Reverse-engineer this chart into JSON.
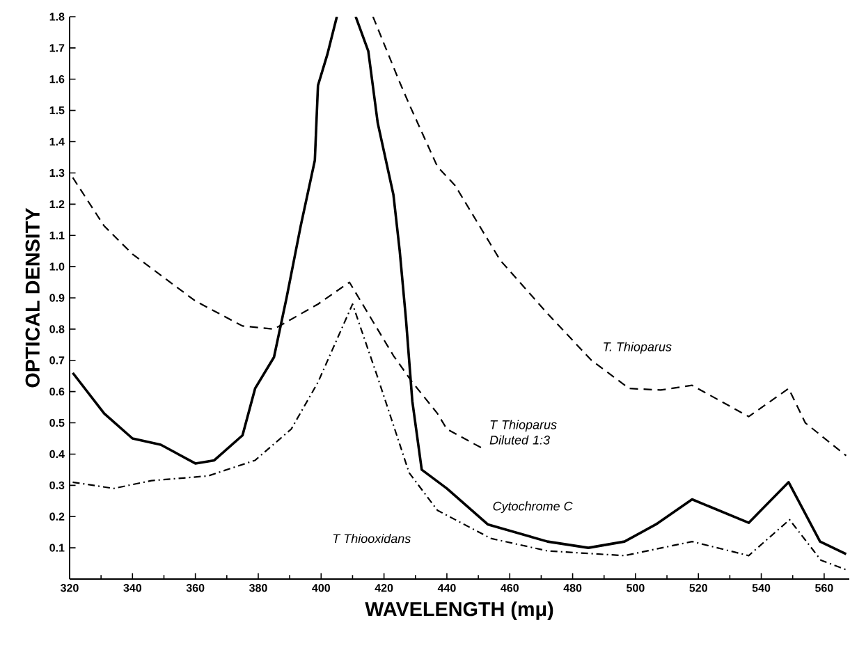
{
  "chart_data": {
    "type": "line",
    "xlabel": "WAVELENGTH (mμ)",
    "ylabel": "OPTICAL DENSITY",
    "xlim": [
      320,
      568
    ],
    "ylim": [
      0,
      1.8
    ],
    "xticks": [
      320,
      340,
      360,
      380,
      400,
      420,
      440,
      460,
      480,
      500,
      520,
      540,
      560
    ],
    "yticks": [
      {
        "value": 0.1,
        "label": "0.1"
      },
      {
        "value": 0.2,
        "label": "0.2"
      },
      {
        "value": 0.3,
        "label": "0.3"
      },
      {
        "value": 0.4,
        "label": "0.4"
      },
      {
        "value": 0.5,
        "label": "0.5"
      },
      {
        "value": 0.6,
        "label": "0.6"
      },
      {
        "value": 0.7,
        "label": "0.7"
      },
      {
        "value": 0.8,
        "label": "0.8"
      },
      {
        "value": 0.9,
        "label": "0.9"
      },
      {
        "value": 1.0,
        "label": "1.0"
      },
      {
        "value": 1.1,
        "label": "1.1"
      },
      {
        "value": 1.2,
        "label": "1.2"
      },
      {
        "value": 1.3,
        "label": "1.3"
      },
      {
        "value": 1.4,
        "label": "1.4"
      },
      {
        "value": 1.5,
        "label": "1.5"
      },
      {
        "value": 1.6,
        "label": "1.6"
      },
      {
        "value": 1.7,
        "label": "1.7"
      },
      {
        "value": 1.8,
        "label": "1.8"
      }
    ],
    "grid": false,
    "legend": false,
    "marker": "none",
    "series": [
      {
        "name": "T. Thioparus",
        "color": "#000000",
        "line_style": "dashed",
        "x": [
          416.5,
          425,
          428,
          437,
          442.6,
          457,
          472,
          486,
          498,
          508,
          518,
          536,
          548.7,
          554,
          567
        ],
        "values": [
          1.8,
          1.59,
          1.52,
          1.32,
          1.26,
          1.02,
          0.85,
          0.7,
          0.61,
          0.605,
          0.62,
          0.52,
          0.61,
          0.5,
          0.395
        ]
      },
      {
        "name": "T Thioparus Diluted 1:3",
        "color": "#000000",
        "line_style": "dashed",
        "x": [
          321,
          331,
          340,
          360,
          375,
          385,
          399,
          409,
          423,
          429,
          437,
          440,
          451
        ],
        "values": [
          1.285,
          1.13,
          1.04,
          0.89,
          0.81,
          0.8,
          0.88,
          0.95,
          0.715,
          0.63,
          0.53,
          0.48,
          0.42
        ]
      },
      {
        "name": "Cytochrome C",
        "color": "#000000",
        "line_style": "solid",
        "x": [
          321,
          331,
          340,
          349,
          360,
          366,
          375,
          379,
          385,
          389,
          393.5,
          398,
          399,
          402,
          405,
          408,
          411,
          415,
          418,
          423,
          425,
          427,
          429,
          432,
          440,
          453,
          472,
          485,
          496.5,
          506.5,
          518,
          536,
          548.7,
          558.7,
          567
        ],
        "values": [
          0.66,
          0.53,
          0.45,
          0.43,
          0.37,
          0.38,
          0.46,
          0.61,
          0.71,
          0.9,
          1.13,
          1.34,
          1.58,
          1.68,
          1.8,
          null,
          1.8,
          1.69,
          1.46,
          1.23,
          1.05,
          0.83,
          0.57,
          0.35,
          0.29,
          0.175,
          0.12,
          0.1,
          0.12,
          0.175,
          0.255,
          0.18,
          0.31,
          0.12,
          0.08
        ]
      },
      {
        "name": "T Thiooxidans",
        "color": "#000000",
        "line_style": "dashdot",
        "x": [
          321,
          334,
          346,
          364,
          379,
          390.5,
          399,
          410,
          418,
          428,
          437,
          454,
          472,
          496.5,
          518,
          536,
          549,
          559,
          567
        ],
        "values": [
          0.31,
          0.29,
          0.315,
          0.33,
          0.38,
          0.48,
          0.63,
          0.88,
          0.645,
          0.34,
          0.22,
          0.13,
          0.09,
          0.075,
          0.12,
          0.075,
          0.19,
          0.06,
          0.03
        ]
      }
    ]
  }
}
